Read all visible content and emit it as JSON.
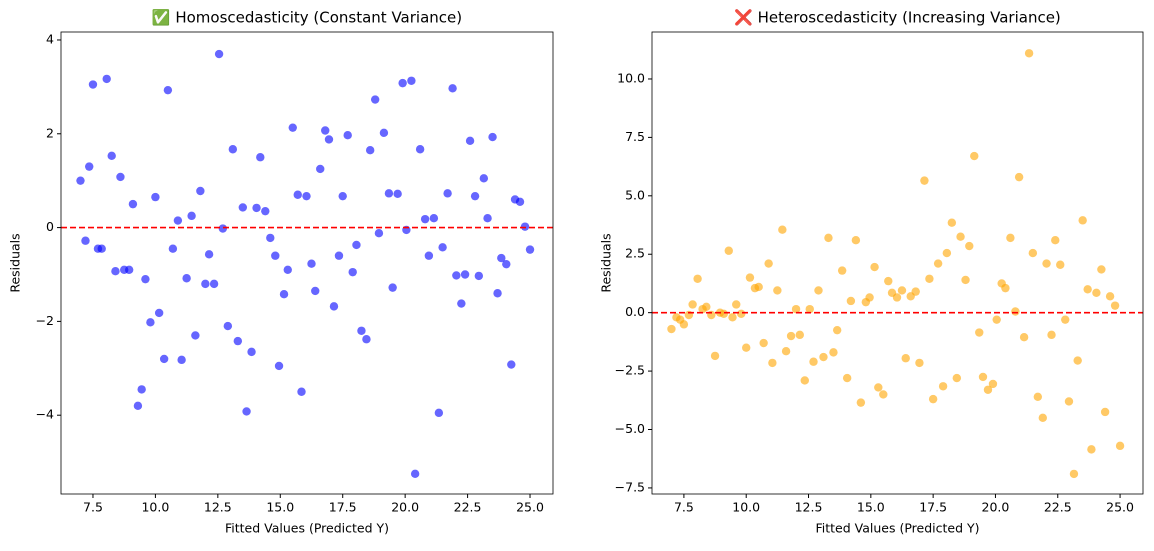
{
  "chart_data": [
    {
      "type": "scatter",
      "title": "✅ Homoscedasticity (Constant Variance)",
      "x_label": "Fitted Values (Predicted Y)",
      "y_label": "Residuals",
      "x": [
        7.0,
        7.2,
        7.35,
        7.5,
        7.7,
        7.85,
        8.05,
        8.25,
        8.4,
        8.6,
        8.75,
        8.95,
        9.1,
        9.3,
        9.45,
        9.6,
        9.8,
        10.0,
        10.15,
        10.35,
        10.5,
        10.7,
        10.9,
        11.05,
        11.25,
        11.45,
        11.6,
        11.8,
        12.0,
        12.15,
        12.35,
        12.55,
        12.7,
        12.9,
        13.1,
        13.3,
        13.5,
        13.65,
        13.85,
        14.05,
        14.2,
        14.4,
        14.6,
        14.8,
        14.95,
        15.15,
        15.3,
        15.5,
        15.7,
        15.85,
        16.05,
        16.25,
        16.4,
        16.6,
        16.8,
        16.95,
        17.15,
        17.35,
        17.5,
        17.7,
        17.9,
        18.05,
        18.25,
        18.45,
        18.6,
        18.8,
        18.95,
        19.15,
        19.35,
        19.5,
        19.7,
        19.9,
        20.05,
        20.25,
        20.4,
        20.6,
        20.8,
        20.95,
        21.15,
        21.35,
        21.5,
        21.7,
        21.9,
        22.05,
        22.25,
        22.4,
        22.6,
        22.8,
        22.95,
        23.15,
        23.3,
        23.5,
        23.7,
        23.85,
        24.05,
        24.25,
        24.4,
        24.6,
        24.8,
        25.0
      ],
      "values": [
        1.0,
        -0.28,
        1.3,
        3.05,
        -0.45,
        -0.45,
        3.17,
        1.53,
        -0.93,
        1.08,
        -0.9,
        -0.9,
        0.5,
        -3.8,
        -3.45,
        -1.1,
        -2.02,
        0.65,
        -1.82,
        -2.8,
        2.93,
        -0.45,
        0.15,
        -2.82,
        -1.08,
        0.25,
        -2.3,
        0.78,
        -1.2,
        -0.57,
        -1.2,
        3.7,
        -0.02,
        -2.1,
        1.67,
        -2.42,
        0.43,
        -3.92,
        -2.65,
        0.42,
        1.5,
        0.35,
        -0.22,
        -0.6,
        -2.95,
        -1.42,
        -0.9,
        2.13,
        0.7,
        -3.5,
        0.67,
        -0.77,
        -1.35,
        1.25,
        2.07,
        1.88,
        -1.68,
        -0.6,
        0.67,
        1.97,
        -0.95,
        -0.37,
        -2.2,
        -2.38,
        1.65,
        2.73,
        -0.12,
        2.02,
        0.73,
        -1.28,
        0.72,
        3.08,
        -0.05,
        3.13,
        -5.25,
        1.67,
        0.18,
        -0.6,
        0.2,
        -3.95,
        -0.42,
        0.73,
        2.97,
        -1.02,
        -1.62,
        -1.0,
        1.85,
        0.67,
        -1.03,
        1.05,
        0.2,
        1.93,
        -1.4,
        -0.65,
        -0.78,
        -2.92,
        0.6,
        0.55,
        0.02,
        -0.47
      ],
      "color": "blue",
      "reference_line": {
        "y": 0,
        "color": "red"
      },
      "xlim": [
        6.22,
        25.92
      ],
      "ylim": [
        -5.68,
        4.17
      ],
      "xticks": [
        7.5,
        {
          "value": 10,
          "label": "10.0"
        },
        12.5,
        {
          "value": 15,
          "label": "15.0"
        },
        17.5,
        {
          "value": 20,
          "label": "20.0"
        },
        22.5,
        {
          "value": 25,
          "label": "25.0"
        }
      ],
      "yticks": [
        {
          "value": -4,
          "label": "−4"
        },
        {
          "value": -2,
          "label": "−2"
        },
        0,
        2,
        4
      ]
    },
    {
      "type": "scatter",
      "title": "❌ Heteroscedasticity (Increasing Variance)",
      "x_label": "Fitted Values (Predicted Y)",
      "y_label": "Residuals",
      "x": [
        7.0,
        7.2,
        7.35,
        7.5,
        7.7,
        7.85,
        8.05,
        8.25,
        8.4,
        8.6,
        8.75,
        8.95,
        9.1,
        9.3,
        9.45,
        9.6,
        9.8,
        10.0,
        10.15,
        10.35,
        10.5,
        10.7,
        10.9,
        11.05,
        11.25,
        11.45,
        11.6,
        11.8,
        12.0,
        12.15,
        12.35,
        12.55,
        12.7,
        12.9,
        13.1,
        13.3,
        13.5,
        13.65,
        13.85,
        14.05,
        14.2,
        14.4,
        14.6,
        14.8,
        14.95,
        15.15,
        15.3,
        15.5,
        15.7,
        15.85,
        16.05,
        16.25,
        16.4,
        16.6,
        16.8,
        16.95,
        17.15,
        17.35,
        17.5,
        17.7,
        17.9,
        18.05,
        18.25,
        18.45,
        18.6,
        18.8,
        18.95,
        19.15,
        19.35,
        19.5,
        19.7,
        19.9,
        20.05,
        20.25,
        20.4,
        20.6,
        20.8,
        20.95,
        21.15,
        21.35,
        21.5,
        21.7,
        21.9,
        22.05,
        22.25,
        22.4,
        22.6,
        22.8,
        22.95,
        23.15,
        23.3,
        23.5,
        23.7,
        23.85,
        24.05,
        24.25,
        24.4,
        24.6,
        24.8,
        25.0
      ],
      "values": [
        -0.7,
        -0.2,
        -0.3,
        -0.5,
        -0.1,
        0.35,
        1.45,
        0.15,
        0.25,
        -0.1,
        -1.85,
        0.0,
        -0.05,
        2.65,
        -0.2,
        0.35,
        -0.05,
        -1.5,
        1.5,
        1.05,
        1.1,
        -1.3,
        2.1,
        -2.15,
        0.95,
        3.55,
        -1.65,
        -1.0,
        0.15,
        -0.95,
        -2.9,
        0.15,
        -2.1,
        0.95,
        -1.9,
        3.2,
        -1.7,
        -0.75,
        1.8,
        -2.8,
        0.5,
        3.1,
        -3.85,
        0.45,
        0.65,
        1.95,
        -3.2,
        -3.5,
        1.35,
        0.85,
        0.65,
        0.95,
        -1.95,
        0.7,
        0.9,
        -2.15,
        5.65,
        1.45,
        -3.7,
        2.1,
        -3.15,
        2.55,
        3.85,
        -2.8,
        3.25,
        1.4,
        2.85,
        6.7,
        -0.85,
        -2.75,
        -3.3,
        -3.05,
        -0.3,
        1.25,
        1.05,
        3.2,
        0.05,
        5.8,
        -1.05,
        11.1,
        2.55,
        -3.6,
        -4.5,
        2.1,
        -0.95,
        3.1,
        2.05,
        -0.3,
        -3.8,
        -6.9,
        -2.05,
        3.95,
        1.0,
        -5.85,
        0.85,
        1.85,
        -4.25,
        0.7,
        0.3,
        -5.7
      ],
      "color": "orange",
      "reference_line": {
        "y": 0,
        "color": "red"
      },
      "xlim": [
        6.22,
        25.92
      ],
      "ylim": [
        -7.76,
        12.01
      ],
      "xticks": [
        7.5,
        {
          "value": 10,
          "label": "10.0"
        },
        12.5,
        {
          "value": 15,
          "label": "15.0"
        },
        17.5,
        {
          "value": 20,
          "label": "20.0"
        },
        22.5,
        {
          "value": 25,
          "label": "25.0"
        }
      ],
      "yticks": [
        {
          "value": -7.5,
          "label": "−7.5"
        },
        {
          "value": -5,
          "label": "−5.0"
        },
        {
          "value": -2.5,
          "label": "−2.5"
        },
        {
          "value": 0,
          "label": "0.0"
        },
        2.5,
        {
          "value": 5,
          "label": "5.0"
        },
        7.5,
        {
          "value": 10,
          "label": "10.0"
        }
      ]
    }
  ]
}
